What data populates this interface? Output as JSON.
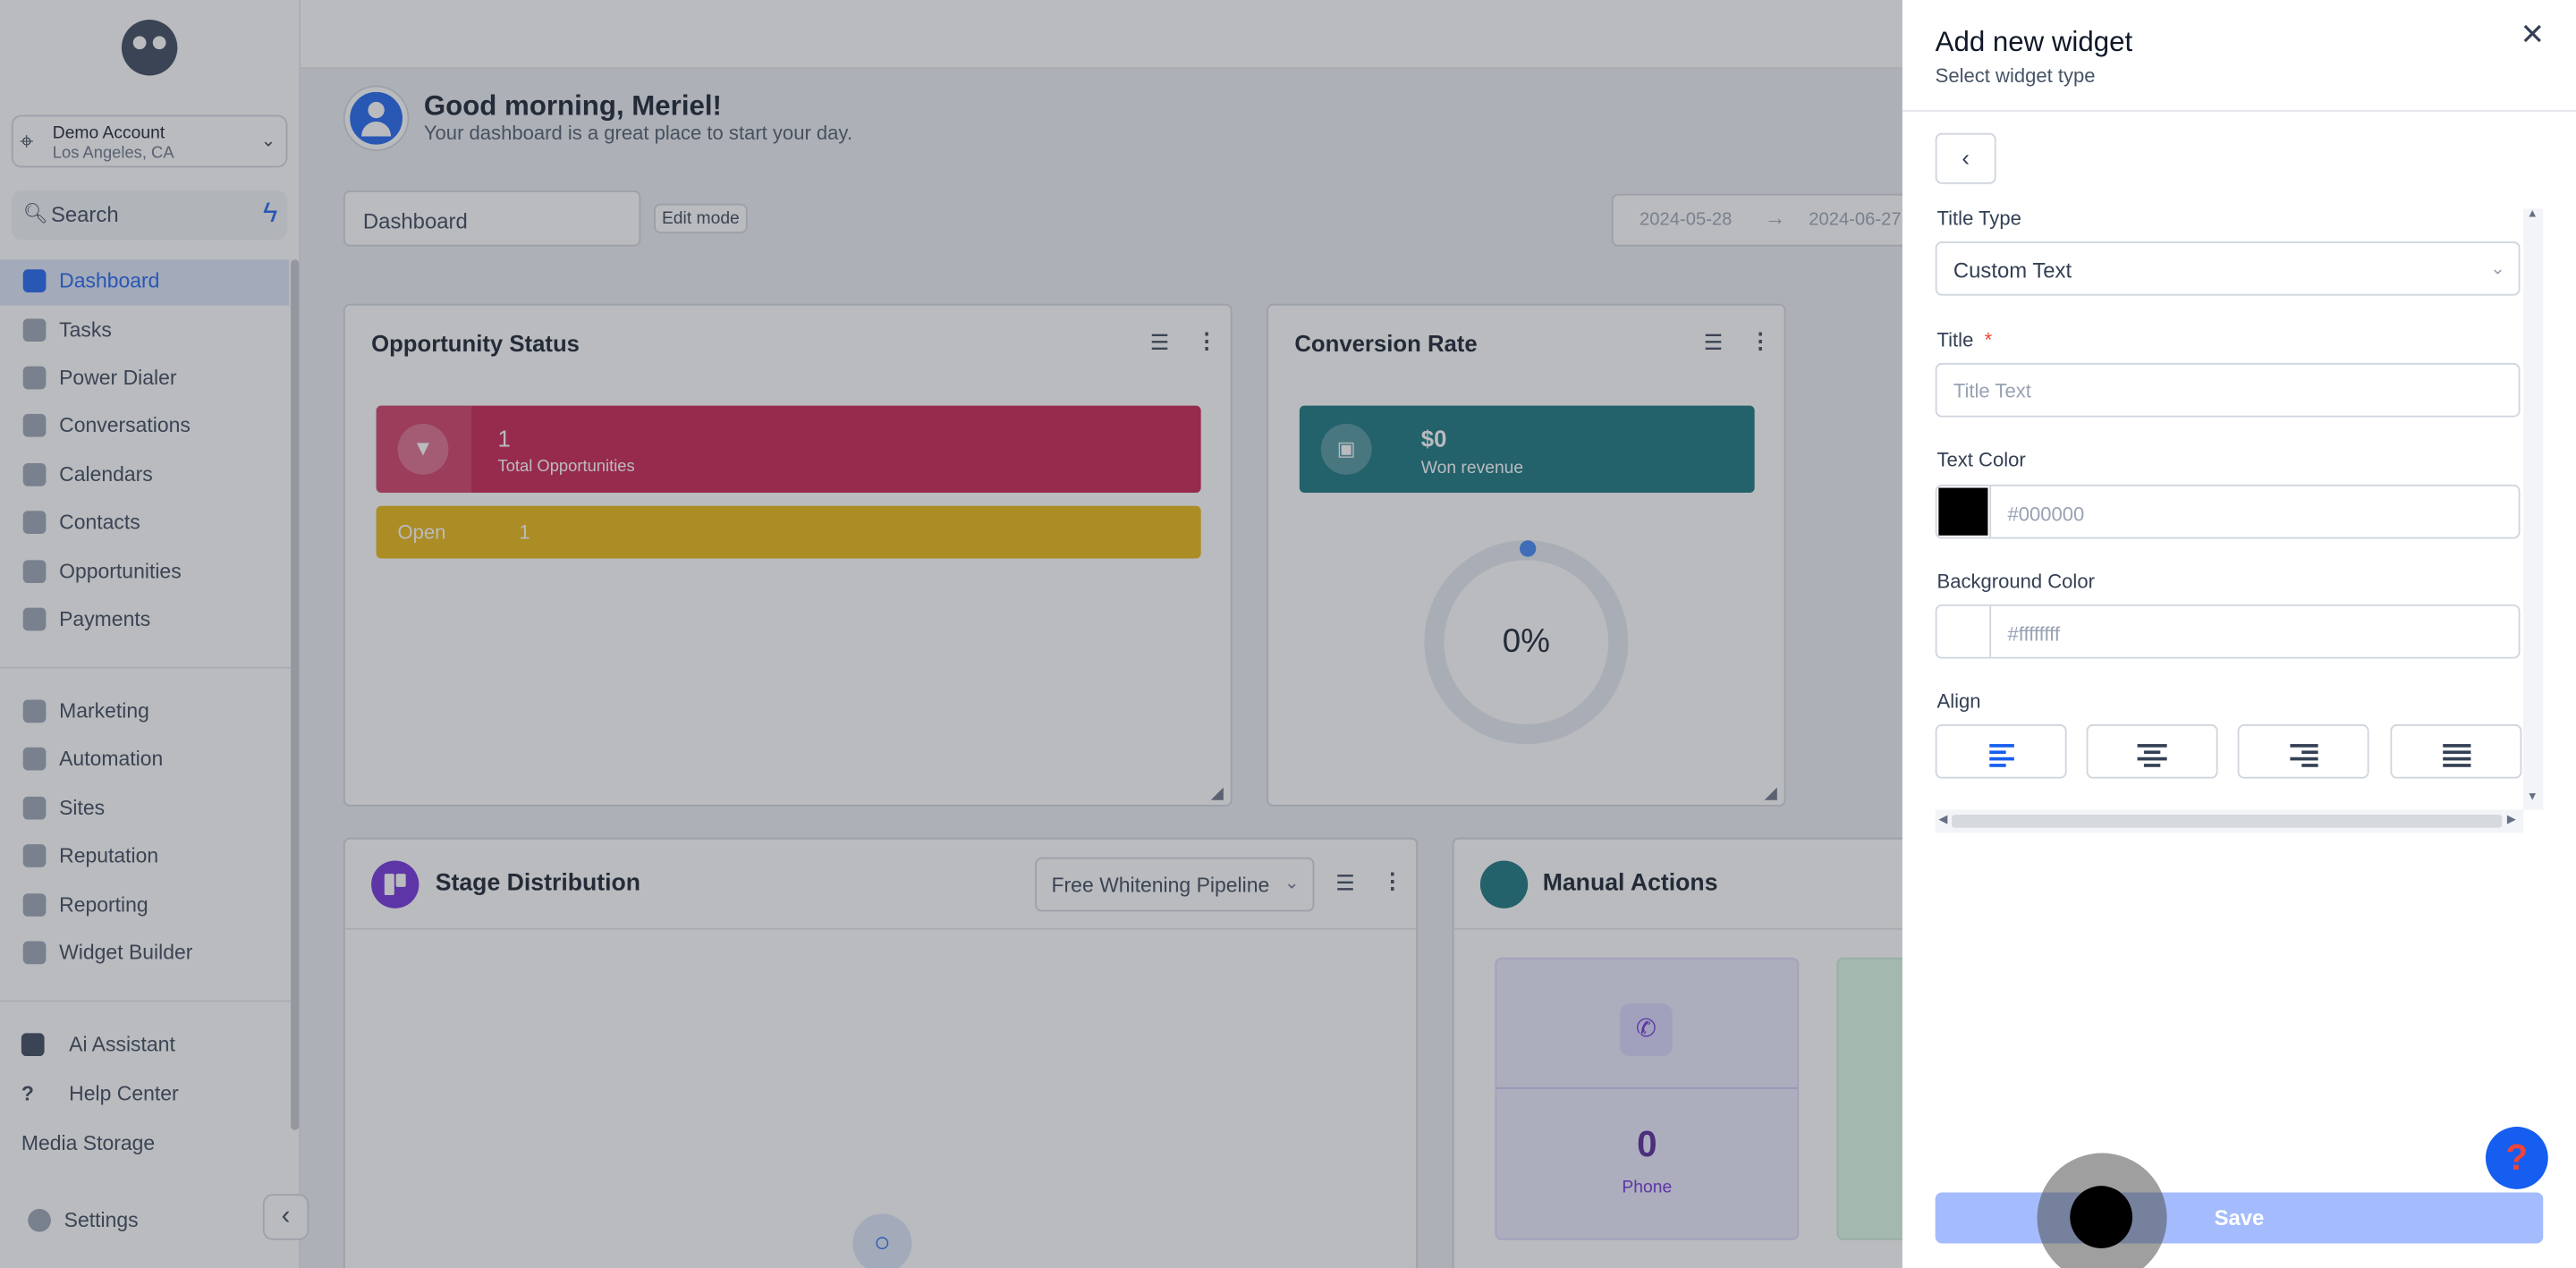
{
  "sidebar": {
    "account": {
      "name": "Demo Account",
      "location": "Los Angeles, CA"
    },
    "search_label": "Search",
    "items": [
      {
        "label": "Dashboard"
      },
      {
        "label": "Tasks"
      },
      {
        "label": "Power Dialer"
      },
      {
        "label": "Conversations"
      },
      {
        "label": "Calendars"
      },
      {
        "label": "Contacts"
      },
      {
        "label": "Opportunities"
      },
      {
        "label": "Payments"
      },
      {
        "label": "Marketing"
      },
      {
        "label": "Automation"
      },
      {
        "label": "Sites"
      },
      {
        "label": "Reputation"
      },
      {
        "label": "Reporting"
      },
      {
        "label": "Widget Builder"
      },
      {
        "label": "Ai Assistant"
      },
      {
        "label": "Help Center"
      },
      {
        "label": "Media Storage"
      },
      {
        "label": "Settings"
      }
    ]
  },
  "header": {
    "greeting": "Good morning, Meriel!",
    "subtitle": "Your dashboard is a great place to start your day.",
    "dashboard_select": "Dashboard",
    "edit_mode": "Edit mode",
    "date_start": "2024-05-28",
    "date_end": "2024-06-27"
  },
  "cards": {
    "opportunity": {
      "title": "Opportunity Status",
      "count": "1",
      "count_label": "Total Opportunities",
      "open_label": "Open",
      "open_value": "1"
    },
    "conversion": {
      "title": "Conversion Rate",
      "revenue": "$0",
      "revenue_label": "Won revenue",
      "percent": "0%"
    },
    "stage": {
      "title": "Stage Distribution",
      "pipeline": "Free Whitening Pipeline"
    },
    "manual": {
      "title": "Manual Actions",
      "phone_value": "0",
      "phone_label": "Phone"
    }
  },
  "panel": {
    "title": "Add new widget",
    "subtitle": "Select widget type",
    "title_type_label": "Title Type",
    "title_type_value": "Custom Text",
    "title_label": "Title",
    "title_required": "*",
    "title_placeholder": "Title Text",
    "text_color_label": "Text Color",
    "text_color_placeholder": "#000000",
    "text_color_swatch": "#000000",
    "bg_color_label": "Background Color",
    "bg_color_placeholder": "#ffffffff",
    "bg_color_swatch": "#ffffff",
    "align_label": "Align",
    "align_options": [
      "left",
      "center",
      "right",
      "justify"
    ],
    "align_selected": "left",
    "save_label": "Save"
  },
  "colors": {
    "accent": "#155eef",
    "opportunity_tile": "#c9184a",
    "open_tile": "#eab308",
    "conversion_tile": "#0e6e7a"
  }
}
